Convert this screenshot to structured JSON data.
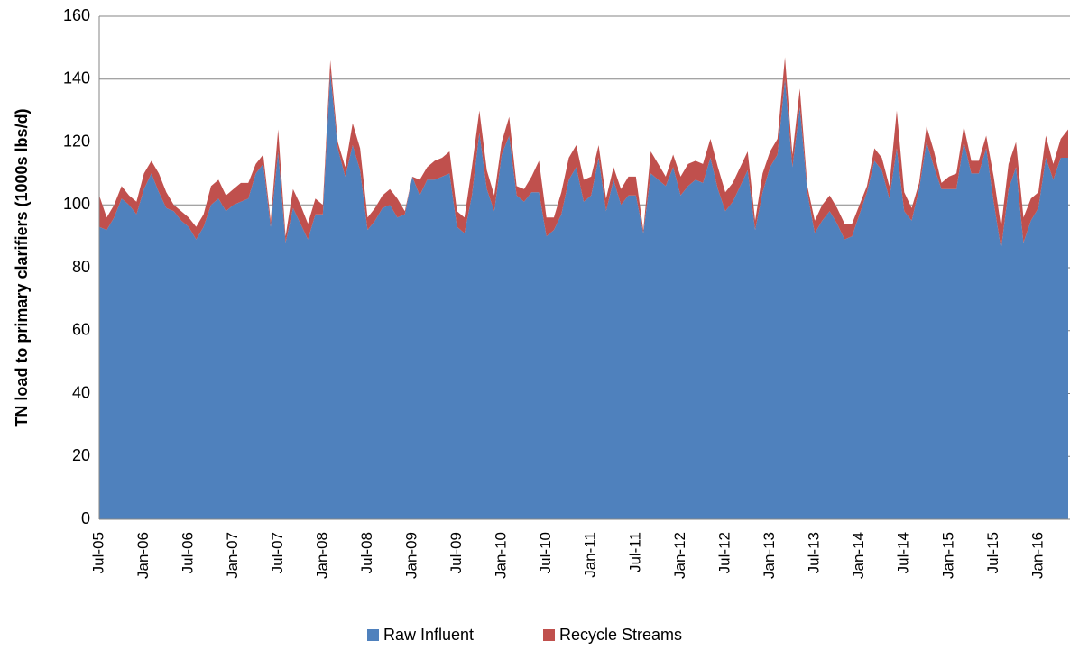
{
  "chart_data": {
    "type": "stacked_area",
    "y_axis_label": "TN load to primary clarifiers (1000s lbs/d)",
    "categories": [
      "Jul-05",
      null,
      null,
      null,
      null,
      null,
      "Jan-06",
      null,
      null,
      null,
      null,
      null,
      "Jul-06",
      null,
      null,
      null,
      null,
      null,
      "Jan-07",
      null,
      null,
      null,
      null,
      null,
      "Jul-07",
      null,
      null,
      null,
      null,
      null,
      "Jan-08",
      null,
      null,
      null,
      null,
      null,
      "Jul-08",
      null,
      null,
      null,
      null,
      null,
      "Jan-09",
      null,
      null,
      null,
      null,
      null,
      "Jul-09",
      null,
      null,
      null,
      null,
      null,
      "Jan-10",
      null,
      null,
      null,
      null,
      null,
      "Jul-10",
      null,
      null,
      null,
      null,
      null,
      "Jan-11",
      null,
      null,
      null,
      null,
      null,
      "Jul-11",
      null,
      null,
      null,
      null,
      null,
      "Jan-12",
      null,
      null,
      null,
      null,
      null,
      "Jul-12",
      null,
      null,
      null,
      null,
      null,
      "Jan-13",
      null,
      null,
      null,
      null,
      null,
      "Jul-13",
      null,
      null,
      null,
      null,
      null,
      "Jan-14",
      null,
      null,
      null,
      null,
      null,
      "Jul-14",
      null,
      null,
      null,
      null,
      null,
      "Jan-15",
      null,
      null,
      null,
      null,
      null,
      "Jul-15",
      null,
      null,
      null,
      null,
      null,
      "Jan-16",
      null,
      null,
      null,
      null
    ],
    "series": [
      {
        "name": "Raw Influent",
        "color": "#4f81bd",
        "values": [
          93,
          92,
          96,
          102,
          100,
          97,
          105,
          110,
          104,
          99,
          98,
          95,
          93,
          89,
          93,
          100,
          102,
          98,
          100,
          101,
          102,
          110,
          113,
          93,
          117,
          88,
          99,
          94,
          89,
          97,
          97,
          142,
          118,
          109,
          119,
          111,
          92,
          95,
          99,
          100,
          96,
          97,
          109,
          103,
          108,
          108,
          109,
          110,
          93,
          91,
          103,
          123,
          105,
          98,
          116,
          122,
          103,
          101,
          104,
          104,
          90,
          92,
          97,
          108,
          112,
          101,
          103,
          115,
          98,
          108,
          100,
          103,
          103,
          91,
          110,
          108,
          106,
          112,
          103,
          106,
          108,
          107,
          115,
          105,
          98,
          101,
          106,
          111,
          92,
          104,
          112,
          116,
          140,
          112,
          131,
          104,
          91,
          95,
          98,
          94,
          89,
          90,
          97,
          104,
          114,
          111,
          102,
          118,
          98,
          95,
          105,
          120,
          112,
          105,
          105,
          105,
          120,
          110,
          110,
          118,
          101,
          86,
          105,
          112,
          88,
          95,
          99,
          115,
          108,
          115,
          115
        ]
      },
      {
        "name": "Recycle Streams",
        "color": "#c0504d",
        "values": [
          10,
          4,
          4,
          4,
          3,
          4,
          5,
          4,
          6,
          5,
          2,
          3,
          3,
          4,
          4,
          6,
          6,
          5,
          5,
          6,
          5,
          3,
          3,
          2,
          7,
          2,
          6,
          6,
          5,
          5,
          3,
          4,
          2,
          3,
          7,
          7,
          4,
          4,
          4,
          5,
          6,
          1,
          0,
          5,
          4,
          6,
          6,
          7,
          5,
          5,
          9,
          7,
          6,
          5,
          4,
          6,
          3,
          4,
          5,
          10,
          6,
          4,
          7,
          7,
          7,
          7,
          6,
          4,
          4,
          4,
          5,
          6,
          6,
          1,
          7,
          5,
          3,
          4,
          6,
          7,
          6,
          6,
          6,
          7,
          6,
          6,
          6,
          6,
          3,
          6,
          5,
          5,
          7,
          4,
          6,
          2,
          4,
          5,
          5,
          5,
          5,
          4,
          3,
          2,
          4,
          4,
          4,
          12,
          6,
          4,
          2,
          5,
          5,
          2,
          4,
          5,
          5,
          4,
          4,
          4,
          8,
          7,
          8,
          8,
          8,
          7,
          5,
          7,
          5,
          6,
          9
        ]
      }
    ],
    "ylim": [
      0,
      160
    ],
    "yticks": [
      0,
      20,
      40,
      60,
      80,
      100,
      120,
      140,
      160
    ],
    "grid": true,
    "legend": "bottom"
  }
}
